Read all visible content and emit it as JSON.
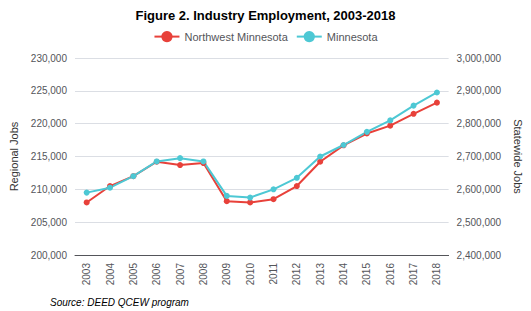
{
  "chart_data": {
    "type": "line",
    "title": "Figure 2. Industry Employment, 2003-2018",
    "categories": [
      "2003",
      "2004",
      "2005",
      "2006",
      "2007",
      "2008",
      "2009",
      "2010",
      "2011",
      "2012",
      "2013",
      "2014",
      "2015",
      "2016",
      "2017",
      "2018"
    ],
    "series": [
      {
        "name": "Northwest Minnesota",
        "color": "#e8413a",
        "axis": "y",
        "values": [
          208000,
          210500,
          212000,
          214200,
          213700,
          214000,
          208200,
          208000,
          208500,
          210500,
          214200,
          216700,
          218500,
          219700,
          221500,
          223200
        ]
      },
      {
        "name": "Minnesota",
        "color": "#4dc8d4",
        "axis": "y2",
        "values": [
          2590000,
          2605000,
          2640000,
          2685000,
          2695000,
          2685000,
          2580000,
          2575000,
          2600000,
          2635000,
          2700000,
          2735000,
          2775000,
          2810000,
          2855000,
          2895000
        ]
      }
    ],
    "ylabel": "Regional Jobs",
    "y2label": "Statewide Jobs",
    "ylim": [
      200000,
      230000
    ],
    "yticks": [
      {
        "value": 200000,
        "label": "200,000"
      },
      {
        "value": 205000,
        "label": "205,000"
      },
      {
        "value": 210000,
        "label": "210,000"
      },
      {
        "value": 215000,
        "label": "215,000"
      },
      {
        "value": 220000,
        "label": "220,000"
      },
      {
        "value": 225000,
        "label": "225,000"
      },
      {
        "value": 230000,
        "label": "230,000"
      }
    ],
    "y2lim": [
      2400000,
      3000000
    ],
    "y2ticks": [
      {
        "value": 2400000,
        "label": "2,400,000"
      },
      {
        "value": 2500000,
        "label": "2,500,000"
      },
      {
        "value": 2600000,
        "label": "2,600,000"
      },
      {
        "value": 2700000,
        "label": "2,700,000"
      },
      {
        "value": 2800000,
        "label": "2,800,000"
      },
      {
        "value": 2900000,
        "label": "2,900,000"
      },
      {
        "value": 3000000,
        "label": "3,000,000"
      }
    ],
    "annotations": [
      "Source: DEED QCEW program"
    ],
    "grid": true,
    "legend": "top",
    "marker": "circle"
  }
}
